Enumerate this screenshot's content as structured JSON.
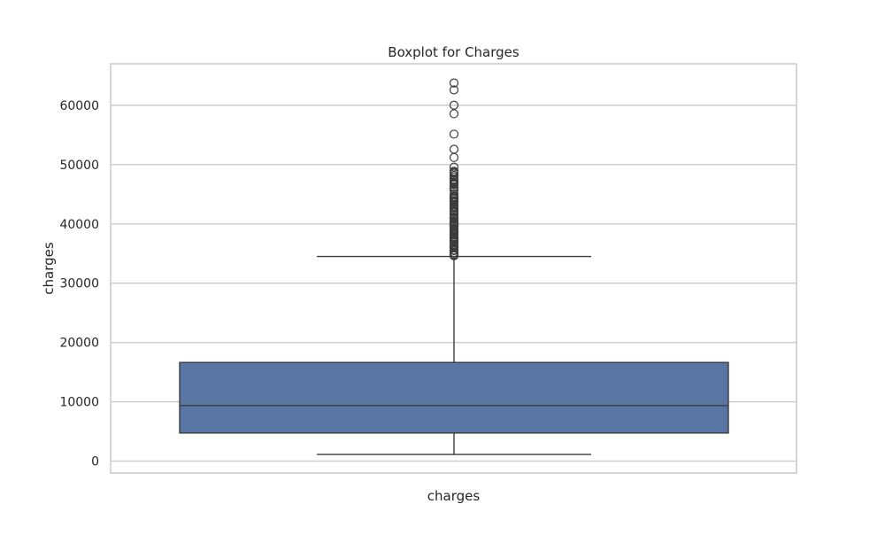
{
  "chart_data": {
    "type": "box",
    "title": "Boxplot for Charges",
    "xlabel": "charges",
    "ylabel": "charges",
    "ylim": [
      -2000,
      67000
    ],
    "yticks": [
      0,
      10000,
      20000,
      30000,
      40000,
      50000,
      60000
    ],
    "yticklabels": [
      "0",
      "10000",
      "20000",
      "30000",
      "40000",
      "50000",
      "60000"
    ],
    "grid": true,
    "box_color": "#5875a4",
    "line_color": "#3d3d3d",
    "series": [
      {
        "whisker_low": 1122,
        "q1": 4740,
        "median": 9382,
        "q3": 16640,
        "whisker_high": 34500,
        "outliers": [
          63770,
          62592,
          60021,
          58571,
          55135,
          52591,
          51195,
          49577,
          48885,
          48824,
          48675,
          48549,
          48173,
          47928,
          47496,
          47291,
          47055,
          46889,
          46718,
          46599,
          46255,
          46200,
          46130,
          45863,
          45710,
          45008,
          44641,
          44585,
          44501,
          44423,
          44260,
          44202,
          43943,
          43921,
          43896,
          43813,
          43753,
          43578,
          43254,
          42983,
          42969,
          42856,
          42760,
          42560,
          42303,
          42124,
          42112,
          41999,
          41919,
          41676,
          41661,
          41097,
          41034,
          40974,
          40942,
          40932,
          40904,
          40720,
          40419,
          40273,
          40182,
          40103,
          40003,
          39983,
          39871,
          39837,
          39836,
          39774,
          39727,
          39611,
          39597,
          39556,
          39241,
          39125,
          39048,
          38998,
          38792,
          38746,
          38711,
          38709,
          38511,
          38415,
          38345,
          38282,
          38245,
          38126,
          37829,
          37742,
          37701,
          37607,
          37484,
          37465,
          37270,
          37134,
          37079,
          36950,
          36910,
          36898,
          36837,
          36580,
          36397,
          36307,
          36219,
          36197,
          36149,
          36125,
          36085,
          36021,
          35585,
          35491,
          35160,
          35147,
          35070,
          34838,
          34806,
          34779,
          34672,
          34617
        ]
      }
    ]
  }
}
